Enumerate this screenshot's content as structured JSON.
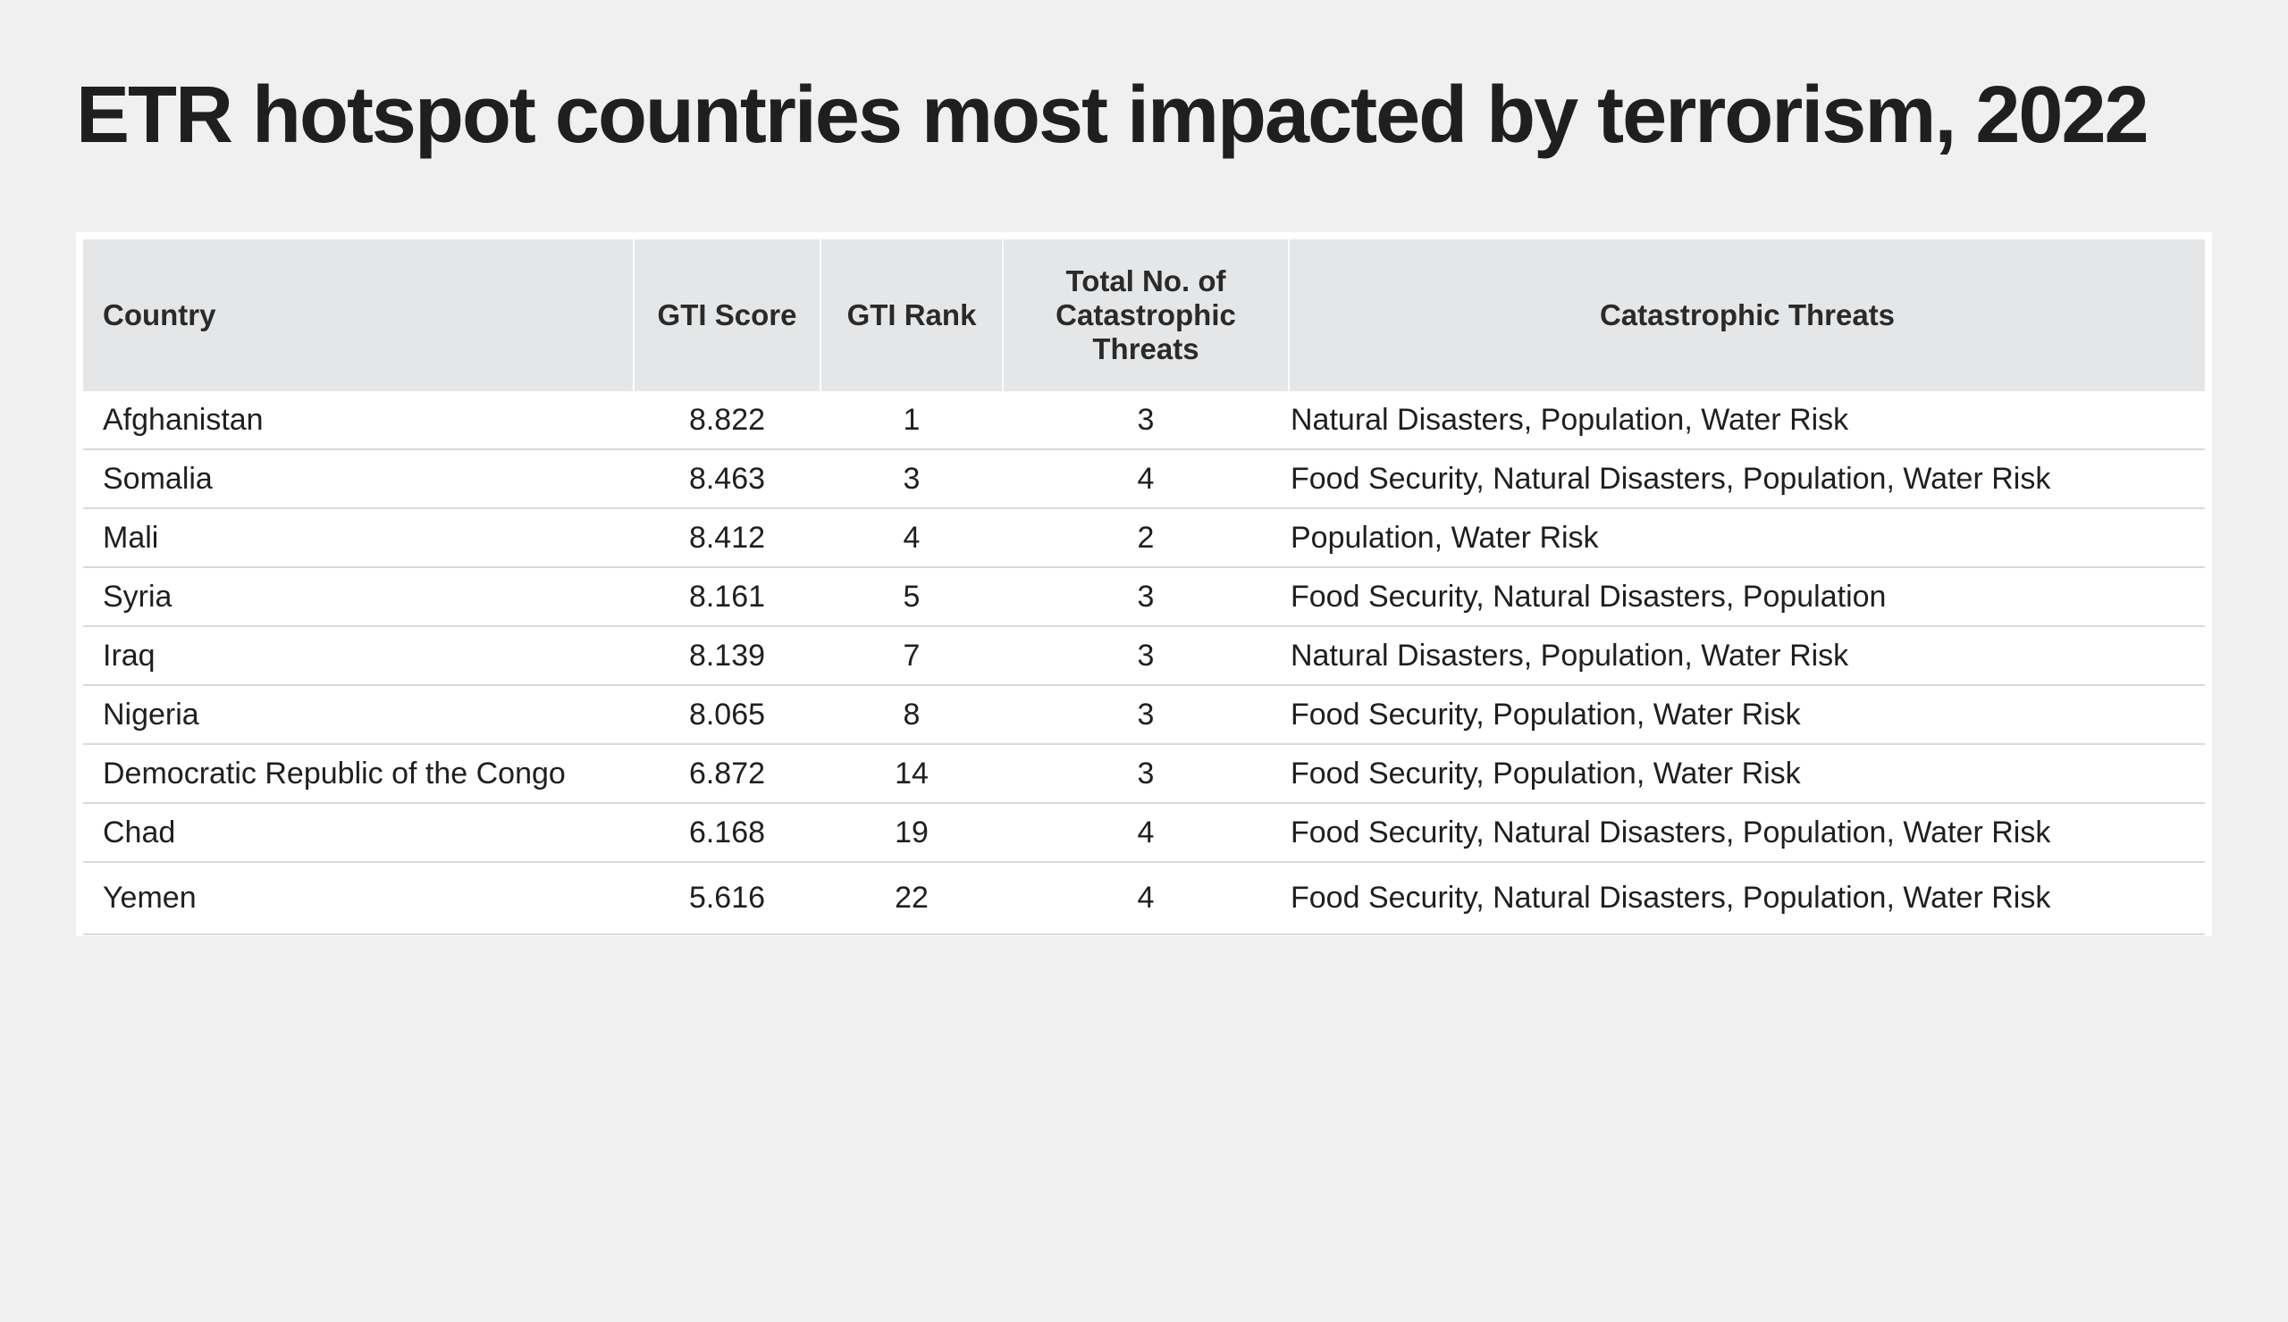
{
  "title": "ETR hotspot countries most impacted by terrorism, 2022",
  "table": {
    "headers": {
      "country": "Country",
      "gti_score": "GTI Score",
      "gti_rank": "GTI Rank",
      "total": "Total No. of Catastrophic Threats",
      "threats": "Catastrophic Threats"
    },
    "rows": [
      {
        "country": "Afghanistan",
        "gti_score": "8.822",
        "gti_rank": "1",
        "total": "3",
        "threats": "Natural Disasters, Population, Water Risk"
      },
      {
        "country": "Somalia",
        "gti_score": "8.463",
        "gti_rank": "3",
        "total": "4",
        "threats": "Food Security, Natural Disasters, Population, Water Risk"
      },
      {
        "country": "Mali",
        "gti_score": "8.412",
        "gti_rank": "4",
        "total": "2",
        "threats": "Population, Water Risk"
      },
      {
        "country": "Syria",
        "gti_score": "8.161",
        "gti_rank": "5",
        "total": "3",
        "threats": "Food Security, Natural Disasters, Population"
      },
      {
        "country": "Iraq",
        "gti_score": "8.139",
        "gti_rank": "7",
        "total": "3",
        "threats": "Natural Disasters, Population, Water Risk"
      },
      {
        "country": "Nigeria",
        "gti_score": "8.065",
        "gti_rank": "8",
        "total": "3",
        "threats": "Food Security, Population, Water Risk"
      },
      {
        "country": "Democratic Republic of the Congo",
        "gti_score": "6.872",
        "gti_rank": "14",
        "total": "3",
        "threats": "Food Security, Population, Water Risk"
      },
      {
        "country": "Chad",
        "gti_score": "6.168",
        "gti_rank": "19",
        "total": "4",
        "threats": "Food Security, Natural Disasters, Population, Water Risk"
      },
      {
        "country": "Yemen",
        "gti_score": "5.616",
        "gti_rank": "22",
        "total": "4",
        "threats": "Food Security, Natural Disasters, Population, Water Risk"
      }
    ]
  }
}
